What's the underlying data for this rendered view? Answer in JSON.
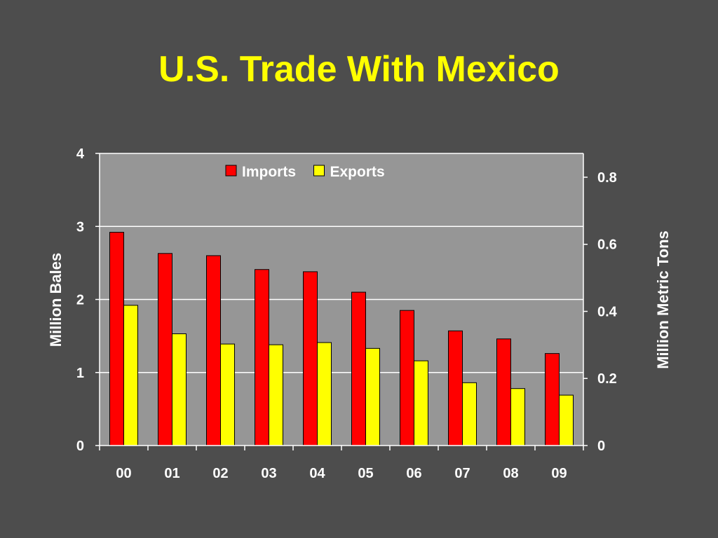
{
  "slide": {
    "title": "U.S. Trade With Mexico"
  },
  "colors": {
    "background": "#4d4d4d",
    "plot_area": "#969696",
    "title": "#ffff00",
    "text": "#ffffff",
    "imports": "#ff0000",
    "exports": "#ffff00"
  },
  "chart_data": {
    "type": "bar",
    "categories": [
      "00",
      "01",
      "02",
      "03",
      "04",
      "05",
      "06",
      "07",
      "08",
      "09"
    ],
    "series": [
      {
        "name": "Imports",
        "color": "#ff0000",
        "values": [
          2.92,
          2.63,
          2.6,
          2.41,
          2.38,
          2.1,
          1.85,
          1.57,
          1.46,
          1.26
        ]
      },
      {
        "name": "Exports",
        "color": "#ffff00",
        "values": [
          1.92,
          1.53,
          1.39,
          1.38,
          1.41,
          1.33,
          1.16,
          0.86,
          0.78,
          0.69
        ]
      }
    ],
    "ylabel": "Million Bales",
    "ylim": [
      0,
      4
    ],
    "yticks": [
      "0",
      "1",
      "2",
      "3",
      "4"
    ],
    "y2label": "Million Metric Tons",
    "y2lim": [
      0,
      0.871
    ],
    "y2ticks": [
      "0",
      "0.2",
      "0.4",
      "0.6",
      "0.8"
    ],
    "grid": true,
    "legend_position": "top-center"
  }
}
